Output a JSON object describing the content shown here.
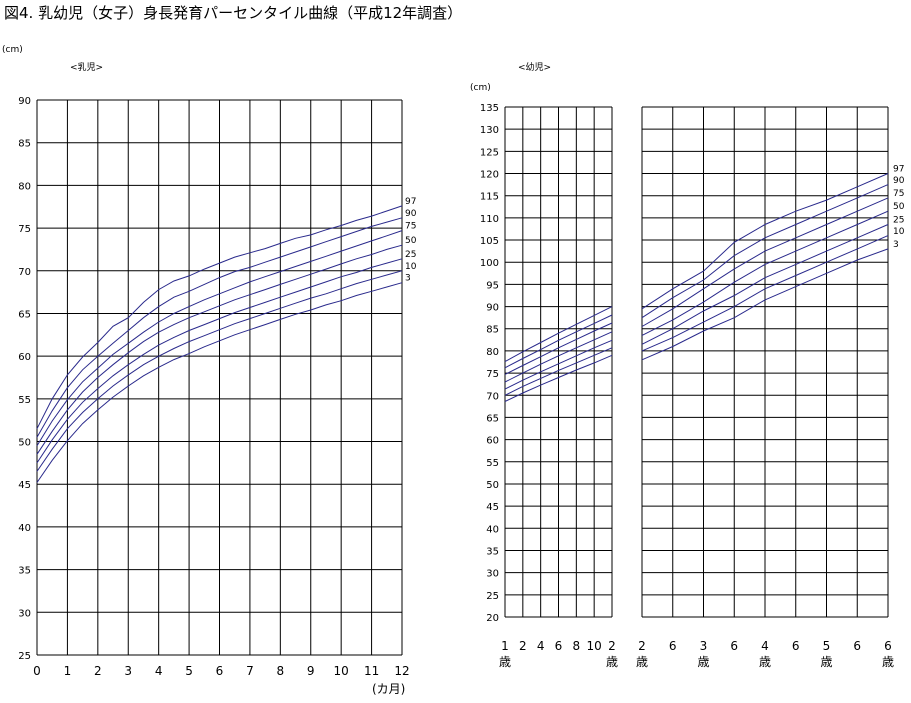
{
  "title": "図4. 乳幼児（女子）身長発育パーセンタイル曲線（平成12年調査）",
  "chart_data": [
    {
      "type": "line",
      "section_label": "<乳児>",
      "unit_label": "(cm)",
      "xlabel": "(カ月)",
      "x_ticks": [
        "0",
        "1",
        "2",
        "3",
        "4",
        "5",
        "6",
        "7",
        "8",
        "9",
        "10",
        "11",
        "12"
      ],
      "y_ticks": [
        "25",
        "30",
        "35",
        "40",
        "45",
        "50",
        "55",
        "60",
        "65",
        "70",
        "75",
        "80",
        "85",
        "90"
      ],
      "xlim": [
        0,
        12
      ],
      "ylim": [
        25,
        90
      ],
      "grid": true,
      "line_color": "#2a2a8c",
      "x": [
        0,
        0.5,
        1,
        1.5,
        2,
        2.5,
        3,
        3.5,
        4,
        4.5,
        5,
        5.5,
        6,
        6.5,
        7,
        7.5,
        8,
        8.5,
        9,
        9.5,
        10,
        10.5,
        11,
        11.5,
        12
      ],
      "series": [
        {
          "name": "97",
          "values": [
            51.5,
            55.0,
            57.8,
            59.9,
            61.6,
            63.5,
            64.5,
            66.3,
            67.8,
            68.8,
            69.4,
            70.2,
            70.9,
            71.6,
            72.1,
            72.6,
            73.2,
            73.8,
            74.2,
            74.8,
            75.3,
            75.9,
            76.4,
            77.0,
            77.6
          ]
        },
        {
          "name": "90",
          "values": [
            50.5,
            53.6,
            56.3,
            58.4,
            60.0,
            61.5,
            63.0,
            64.5,
            65.8,
            66.9,
            67.6,
            68.4,
            69.2,
            69.9,
            70.4,
            71.0,
            71.6,
            72.2,
            72.8,
            73.4,
            74.0,
            74.6,
            75.2,
            75.7,
            76.2
          ]
        },
        {
          "name": "75",
          "values": [
            49.5,
            52.4,
            54.9,
            57.0,
            58.6,
            60.2,
            61.5,
            62.8,
            64.0,
            65.0,
            65.8,
            66.6,
            67.3,
            68.0,
            68.7,
            69.3,
            69.9,
            70.5,
            71.1,
            71.7,
            72.3,
            72.9,
            73.5,
            74.1,
            74.7
          ]
        },
        {
          "name": "50",
          "values": [
            48.5,
            51.2,
            53.7,
            55.8,
            57.5,
            59.0,
            60.4,
            61.7,
            62.8,
            63.7,
            64.5,
            65.2,
            65.9,
            66.6,
            67.2,
            67.8,
            68.4,
            69.0,
            69.6,
            70.2,
            70.8,
            71.4,
            71.9,
            72.5,
            73.0
          ]
        },
        {
          "name": "25",
          "values": [
            47.5,
            50.2,
            52.6,
            54.6,
            56.2,
            57.7,
            59.0,
            60.2,
            61.3,
            62.2,
            63.0,
            63.7,
            64.4,
            65.1,
            65.7,
            66.3,
            66.9,
            67.5,
            68.1,
            68.7,
            69.3,
            69.8,
            70.4,
            70.9,
            71.4
          ]
        },
        {
          "name": "10",
          "values": [
            46.5,
            49.1,
            51.5,
            53.4,
            55.0,
            56.5,
            57.8,
            59.0,
            60.0,
            60.9,
            61.7,
            62.4,
            63.1,
            63.8,
            64.4,
            65.0,
            65.6,
            66.2,
            66.8,
            67.3,
            67.9,
            68.5,
            69.0,
            69.5,
            70.0
          ]
        },
        {
          "name": "3",
          "values": [
            45.2,
            47.8,
            50.1,
            52.1,
            53.7,
            55.2,
            56.5,
            57.7,
            58.7,
            59.6,
            60.3,
            61.1,
            61.8,
            62.5,
            63.1,
            63.7,
            64.3,
            64.9,
            65.4,
            66.0,
            66.5,
            67.1,
            67.6,
            68.1,
            68.6
          ]
        }
      ]
    },
    {
      "type": "line",
      "section_label": "<幼児>",
      "unit_label": "(cm)",
      "x_ticks": [
        "1",
        "2",
        "4",
        "6",
        "8",
        "10",
        "2"
      ],
      "x_tick_subs": [
        "歳",
        "",
        "",
        "",
        "",
        "",
        "歳"
      ],
      "y_ticks": [
        "20",
        "25",
        "30",
        "35",
        "40",
        "45",
        "50",
        "55",
        "60",
        "65",
        "70",
        "75",
        "80",
        "85",
        "90",
        "95",
        "100",
        "105",
        "110",
        "115",
        "120",
        "125",
        "130",
        "135"
      ],
      "xlim": [
        0,
        12
      ],
      "ylim": [
        20,
        135
      ],
      "grid": true,
      "line_color": "#2a2a8c",
      "x": [
        0,
        2,
        4,
        6,
        8,
        10,
        12
      ],
      "series": [
        {
          "name": "97",
          "values": [
            77.6,
            79.8,
            81.9,
            84.0,
            86.0,
            88.0,
            90.0
          ]
        },
        {
          "name": "90",
          "values": [
            76.2,
            78.3,
            80.3,
            82.4,
            84.3,
            86.2,
            88.1
          ]
        },
        {
          "name": "75",
          "values": [
            74.7,
            76.7,
            78.7,
            80.7,
            82.6,
            84.5,
            86.3
          ]
        },
        {
          "name": "50",
          "values": [
            73.0,
            75.0,
            77.0,
            78.9,
            80.7,
            82.5,
            84.3
          ]
        },
        {
          "name": "25",
          "values": [
            71.4,
            73.4,
            75.3,
            77.1,
            78.9,
            80.7,
            82.4
          ]
        },
        {
          "name": "10",
          "values": [
            70.0,
            72.0,
            73.8,
            75.6,
            77.3,
            79.0,
            80.7
          ]
        },
        {
          "name": "3",
          "values": [
            68.6,
            70.5,
            72.3,
            74.0,
            75.7,
            77.3,
            79.0
          ]
        }
      ]
    },
    {
      "type": "line",
      "x_ticks": [
        "2",
        "6",
        "3",
        "6",
        "4",
        "6",
        "5",
        "6",
        "6"
      ],
      "x_tick_subs": [
        "歳",
        "",
        "歳",
        "",
        "歳",
        "",
        "歳",
        "",
        "歳"
      ],
      "xlim": [
        2,
        6
      ],
      "ylim": [
        20,
        135
      ],
      "grid": true,
      "line_color": "#2a2a8c",
      "x": [
        2,
        2.5,
        3,
        3.5,
        4,
        4.5,
        5,
        5.5,
        6
      ],
      "series": [
        {
          "name": "97",
          "values": [
            89.5,
            94.0,
            98.0,
            104.5,
            108.5,
            111.5,
            114.0,
            117.0,
            120.0
          ]
        },
        {
          "name": "90",
          "values": [
            87.5,
            92.0,
            96.0,
            101.5,
            105.5,
            108.5,
            111.5,
            114.5,
            117.5
          ]
        },
        {
          "name": "75",
          "values": [
            85.5,
            89.5,
            94.0,
            98.5,
            102.5,
            105.5,
            108.5,
            111.5,
            114.5
          ]
        },
        {
          "name": "50",
          "values": [
            83.5,
            87.0,
            91.0,
            95.5,
            99.5,
            102.5,
            105.5,
            108.5,
            111.5
          ]
        },
        {
          "name": "25",
          "values": [
            81.5,
            85.0,
            89.0,
            92.5,
            96.5,
            99.5,
            102.5,
            105.5,
            108.5
          ]
        },
        {
          "name": "10",
          "values": [
            80.0,
            83.0,
            86.5,
            90.0,
            94.0,
            97.0,
            100.0,
            103.0,
            106.0
          ]
        },
        {
          "name": "3",
          "values": [
            78.0,
            81.0,
            84.5,
            87.5,
            91.5,
            94.5,
            97.5,
            100.5,
            103.0
          ]
        }
      ]
    }
  ]
}
